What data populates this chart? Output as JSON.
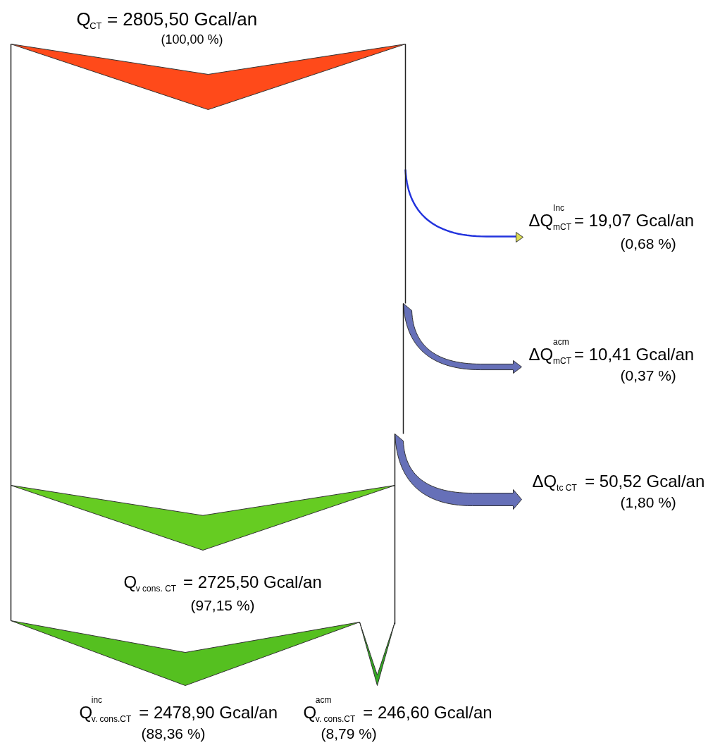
{
  "chart_data": {
    "type": "other",
    "categories": [
      "Q$_{CT}$",
      "ΔQ$^{Inc}$$_{mCT}$",
      "ΔQ$^{acm}$$_{mCT}$",
      "ΔQ$_{tc CT}$",
      "Q$_{v cons. CT}$",
      "Q$^{inc}$$_{v. cons.CT}$",
      "Q$^{acm}$$_{v. cons.CT}$"
    ],
    "values": [
      2805.5,
      19.07,
      10.41,
      50.52,
      2725.5,
      2478.9,
      246.6
    ],
    "colors": [
      "#ff4a1a",
      "#2233dd",
      "#6670b8",
      "#6670b8",
      "#66cc22",
      "#55c020",
      "#33aa22"
    ],
    "value_labels": [
      "= 2805,50 Gcal/an",
      "= 19,07 Gcal/an",
      "= 10,41 Gcal/an",
      "= 50,52 Gcal/an",
      "= 2725,50 Gcal/an",
      "= 2478,90 Gcal/an",
      "= 246,60 Gcal/an"
    ],
    "annotations": [
      "(100,00 %)",
      "(0,68 %)",
      "(0,37 %)",
      "(1,80 %)",
      "(97,15 %)",
      "(88,36 %)",
      "(8,79 %)"
    ]
  }
}
